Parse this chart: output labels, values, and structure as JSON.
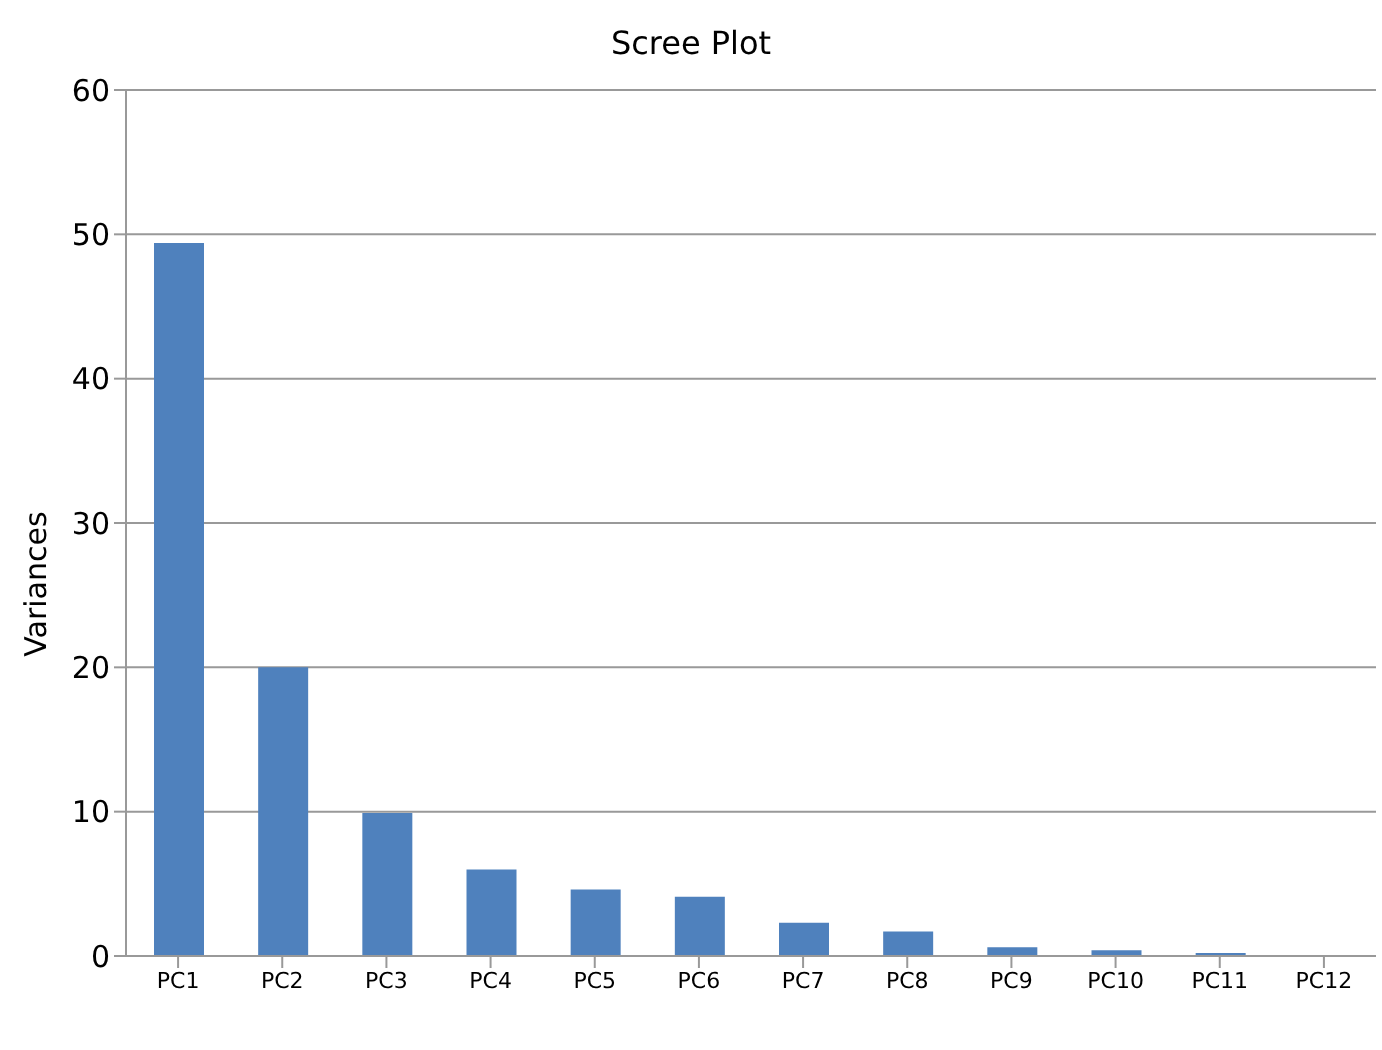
{
  "chart_data": {
    "type": "bar",
    "title": "Scree Plot",
    "ylabel": "Variances",
    "categories": [
      "PC1",
      "PC2",
      "PC3",
      "PC4",
      "PC5",
      "PC6",
      "PC7",
      "PC8",
      "PC9",
      "PC10",
      "PC11",
      "PC12"
    ],
    "values": [
      49.4,
      20,
      9.9,
      6,
      4.6,
      4.1,
      2.3,
      1.7,
      0.6,
      0.4,
      0.2,
      0
    ],
    "color": "#4f81bd",
    "ylim": [
      0,
      60
    ],
    "yticks": [
      0,
      10,
      20,
      30,
      40,
      50,
      60
    ],
    "grid": "y"
  }
}
